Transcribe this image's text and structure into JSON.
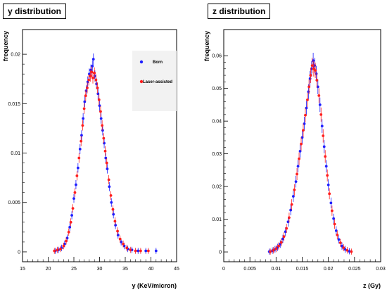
{
  "chart_data": [
    {
      "type": "scatter",
      "title": "y distribution",
      "xlabel": "y (KeV/micron)",
      "ylabel": "frequency",
      "xlim": [
        15,
        45
      ],
      "ylim": [
        -0.001,
        0.0225
      ],
      "xticks": [
        "15",
        "20",
        "25",
        "30",
        "35",
        "40",
        "45"
      ],
      "yticks": [
        "0",
        "0.005",
        "0.01",
        "0.015",
        "0.02"
      ],
      "error_bars": true,
      "legend": {
        "placement": "top-right",
        "entries": [
          "Born",
          "Laser-assisted"
        ]
      },
      "series": [
        {
          "name": "Born",
          "color": "#1e1eff",
          "points": [
            [
              21.4,
              0.0001
            ],
            [
              22.0,
              0.0002
            ],
            [
              22.6,
              0.0004
            ],
            [
              23.2,
              0.0008
            ],
            [
              23.7,
              0.0014
            ],
            [
              24.2,
              0.0025
            ],
            [
              24.6,
              0.0037
            ],
            [
              25.0,
              0.0054
            ],
            [
              25.4,
              0.0068
            ],
            [
              25.8,
              0.0085
            ],
            [
              26.2,
              0.0104
            ],
            [
              26.5,
              0.0118
            ],
            [
              26.8,
              0.0135
            ],
            [
              27.1,
              0.0152
            ],
            [
              27.4,
              0.0163
            ],
            [
              27.7,
              0.0172
            ],
            [
              28.0,
              0.018
            ],
            [
              28.3,
              0.0184
            ],
            [
              28.6,
              0.0188
            ],
            [
              28.8,
              0.0195
            ],
            [
              29.1,
              0.0178
            ],
            [
              29.4,
              0.017
            ],
            [
              29.7,
              0.016
            ],
            [
              30.0,
              0.0148
            ],
            [
              30.3,
              0.0135
            ],
            [
              30.6,
              0.0123
            ],
            [
              30.9,
              0.011
            ],
            [
              31.2,
              0.0095
            ],
            [
              31.5,
              0.0084
            ],
            [
              31.9,
              0.0066
            ],
            [
              32.3,
              0.005
            ],
            [
              32.7,
              0.0038
            ],
            [
              33.1,
              0.0027
            ],
            [
              33.6,
              0.0017
            ],
            [
              34.2,
              0.001
            ],
            [
              34.8,
              0.0006
            ],
            [
              35.5,
              0.0003
            ],
            [
              36.3,
              0.0002
            ],
            [
              37.5,
              0.0001
            ],
            [
              39.0,
              0.0001
            ],
            [
              41.0,
              0.0001
            ]
          ]
        },
        {
          "name": "Laser-assisted",
          "color": "#ff1e1e",
          "points": [
            [
              21.2,
              0.0001
            ],
            [
              21.8,
              0.0002
            ],
            [
              22.4,
              0.0003
            ],
            [
              23.0,
              0.0006
            ],
            [
              23.5,
              0.0011
            ],
            [
              24.0,
              0.002
            ],
            [
              24.4,
              0.003
            ],
            [
              24.8,
              0.0044
            ],
            [
              25.2,
              0.006
            ],
            [
              25.6,
              0.0077
            ],
            [
              26.0,
              0.0095
            ],
            [
              26.4,
              0.0112
            ],
            [
              26.7,
              0.0128
            ],
            [
              27.0,
              0.0145
            ],
            [
              27.3,
              0.0158
            ],
            [
              27.6,
              0.0166
            ],
            [
              27.9,
              0.0174
            ],
            [
              28.2,
              0.0178
            ],
            [
              28.5,
              0.0182
            ],
            [
              28.7,
              0.0176
            ],
            [
              29.0,
              0.0181
            ],
            [
              29.3,
              0.0174
            ],
            [
              29.6,
              0.0166
            ],
            [
              29.9,
              0.0154
            ],
            [
              30.2,
              0.0142
            ],
            [
              30.5,
              0.0128
            ],
            [
              30.8,
              0.0115
            ],
            [
              31.1,
              0.0102
            ],
            [
              31.4,
              0.009
            ],
            [
              31.8,
              0.0073
            ],
            [
              32.2,
              0.0057
            ],
            [
              32.6,
              0.0043
            ],
            [
              33.0,
              0.0031
            ],
            [
              33.5,
              0.0021
            ],
            [
              34.0,
              0.0013
            ],
            [
              34.6,
              0.0008
            ],
            [
              35.3,
              0.0004
            ],
            [
              36.0,
              0.0002
            ],
            [
              37.0,
              0.0001
            ],
            [
              38.0,
              0.0001
            ],
            [
              39.5,
              0.0001
            ]
          ]
        }
      ]
    },
    {
      "type": "scatter",
      "title": "z distribution",
      "xlabel": "z (Gy)",
      "ylabel": "frequency",
      "xlim": [
        0,
        0.03
      ],
      "ylim": [
        -0.003,
        0.068
      ],
      "xticks": [
        "0",
        "0.005",
        "0.01",
        "0.015",
        "0.02",
        "0.025",
        "0.03"
      ],
      "yticks": [
        "0",
        "0.01",
        "0.02",
        "0.03",
        "0.04",
        "0.05",
        "0.06"
      ],
      "error_bars": true,
      "series": [
        {
          "name": "Born",
          "color": "#1e1eff",
          "points": [
            [
              0.0087,
              0.0001
            ],
            [
              0.0093,
              0.0004
            ],
            [
              0.0098,
              0.0008
            ],
            [
              0.0103,
              0.0014
            ],
            [
              0.0108,
              0.0024
            ],
            [
              0.0113,
              0.004
            ],
            [
              0.0118,
              0.0062
            ],
            [
              0.0123,
              0.0092
            ],
            [
              0.0128,
              0.0128
            ],
            [
              0.0133,
              0.017
            ],
            [
              0.0138,
              0.0215
            ],
            [
              0.0142,
              0.0262
            ],
            [
              0.0146,
              0.0308
            ],
            [
              0.015,
              0.035
            ],
            [
              0.0154,
              0.0392
            ],
            [
              0.0158,
              0.044
            ],
            [
              0.0162,
              0.049
            ],
            [
              0.0165,
              0.053
            ],
            [
              0.0168,
              0.056
            ],
            [
              0.0171,
              0.0585
            ],
            [
              0.0174,
              0.057
            ],
            [
              0.0177,
              0.0545
            ],
            [
              0.018,
              0.0505
            ],
            [
              0.0184,
              0.045
            ],
            [
              0.0188,
              0.0385
            ],
            [
              0.0192,
              0.0322
            ],
            [
              0.0196,
              0.0262
            ],
            [
              0.02,
              0.0205
            ],
            [
              0.0205,
              0.015
            ],
            [
              0.021,
              0.0102
            ],
            [
              0.0215,
              0.0065
            ],
            [
              0.022,
              0.0038
            ],
            [
              0.0226,
              0.0018
            ],
            [
              0.0232,
              0.0008
            ],
            [
              0.024,
              0.0002
            ]
          ]
        },
        {
          "name": "Laser-assisted",
          "color": "#ff1e1e",
          "points": [
            [
              0.0089,
              0.0001
            ],
            [
              0.0095,
              0.0005
            ],
            [
              0.01,
              0.001
            ],
            [
              0.0105,
              0.0018
            ],
            [
              0.011,
              0.0029
            ],
            [
              0.0115,
              0.0047
            ],
            [
              0.012,
              0.0072
            ],
            [
              0.0125,
              0.0105
            ],
            [
              0.013,
              0.0145
            ],
            [
              0.0135,
              0.019
            ],
            [
              0.014,
              0.0238
            ],
            [
              0.0144,
              0.0285
            ],
            [
              0.0148,
              0.033
            ],
            [
              0.0152,
              0.0372
            ],
            [
              0.0156,
              0.0418
            ],
            [
              0.016,
              0.0465
            ],
            [
              0.0163,
              0.0505
            ],
            [
              0.0166,
              0.054
            ],
            [
              0.0169,
              0.057
            ],
            [
              0.0172,
              0.056
            ],
            [
              0.0175,
              0.0555
            ],
            [
              0.0178,
              0.0525
            ],
            [
              0.0182,
              0.0478
            ],
            [
              0.0186,
              0.042
            ],
            [
              0.019,
              0.0355
            ],
            [
              0.0194,
              0.0292
            ],
            [
              0.0198,
              0.0234
            ],
            [
              0.0202,
              0.0178
            ],
            [
              0.0207,
              0.0126
            ],
            [
              0.0212,
              0.0085
            ],
            [
              0.0217,
              0.0052
            ],
            [
              0.0223,
              0.0028
            ],
            [
              0.0229,
              0.0013
            ],
            [
              0.0236,
              0.0005
            ],
            [
              0.0244,
              0.0001
            ]
          ]
        }
      ]
    }
  ]
}
